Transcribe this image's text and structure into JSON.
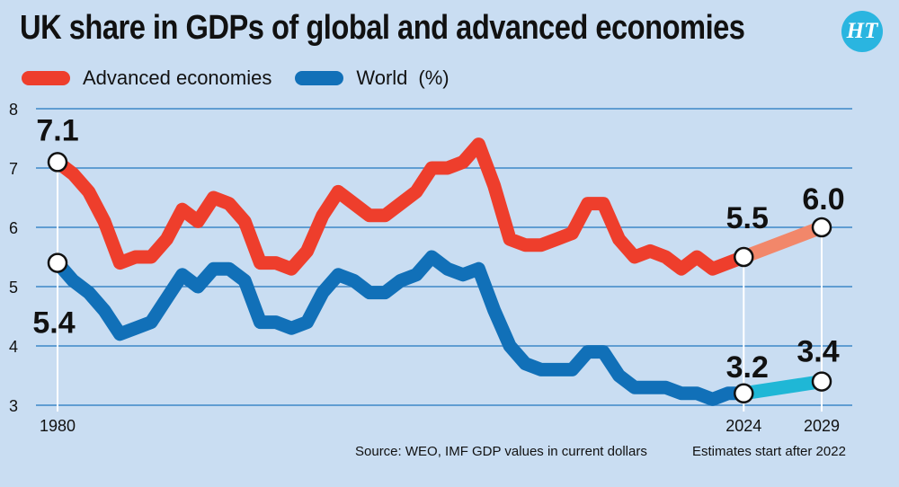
{
  "logo_text": "HT",
  "chart_data": {
    "type": "line",
    "title": "UK share in GDPs of global and advanced economies",
    "unit": "(%)",
    "ylim": [
      3,
      8
    ],
    "yticks": [
      8,
      7,
      6,
      5,
      4,
      3
    ],
    "xlim": [
      1980,
      2029
    ],
    "grid": true,
    "legend_position": "top-left",
    "series": [
      {
        "name": "Advanced economies",
        "color": "#ee3e2c",
        "estimate_color": "#f2876a",
        "x": [
          1980,
          1981,
          1982,
          1983,
          1984,
          1985,
          1986,
          1987,
          1988,
          1989,
          1990,
          1991,
          1992,
          1993,
          1994,
          1995,
          1996,
          1997,
          1998,
          1999,
          2000,
          2001,
          2002,
          2003,
          2004,
          2005,
          2006,
          2007,
          2008,
          2009,
          2010,
          2011,
          2012,
          2013,
          2014,
          2015,
          2016,
          2017,
          2018,
          2019,
          2020,
          2021,
          2022,
          2023,
          2024
        ],
        "values": [
          7.1,
          6.9,
          6.6,
          6.1,
          5.4,
          5.5,
          5.5,
          5.8,
          6.3,
          6.1,
          6.5,
          6.4,
          6.1,
          5.4,
          5.4,
          5.3,
          5.6,
          6.2,
          6.6,
          6.4,
          6.2,
          6.2,
          6.4,
          6.6,
          7.0,
          7.0,
          7.1,
          7.4,
          6.7,
          5.8,
          5.7,
          5.7,
          5.8,
          5.9,
          6.4,
          6.4,
          5.8,
          5.5,
          5.6,
          5.5,
          5.3,
          5.5,
          5.3,
          5.4,
          5.5
        ],
        "estimate_x": [
          2024,
          2029
        ],
        "estimate_values": [
          5.5,
          6.0
        ]
      },
      {
        "name": "World",
        "color": "#1170b8",
        "estimate_color": "#1fb7d6",
        "x": [
          1980,
          1981,
          1982,
          1983,
          1984,
          1985,
          1986,
          1987,
          1988,
          1989,
          1990,
          1991,
          1992,
          1993,
          1994,
          1995,
          1996,
          1997,
          1998,
          1999,
          2000,
          2001,
          2002,
          2003,
          2004,
          2005,
          2006,
          2007,
          2008,
          2009,
          2010,
          2011,
          2012,
          2013,
          2014,
          2015,
          2016,
          2017,
          2018,
          2019,
          2020,
          2021,
          2022,
          2023,
          2024
        ],
        "values": [
          5.4,
          5.1,
          4.9,
          4.6,
          4.2,
          4.3,
          4.4,
          4.8,
          5.2,
          5.0,
          5.3,
          5.3,
          5.1,
          4.4,
          4.4,
          4.3,
          4.4,
          4.9,
          5.2,
          5.1,
          4.9,
          4.9,
          5.1,
          5.2,
          5.5,
          5.3,
          5.2,
          5.3,
          4.6,
          4.0,
          3.7,
          3.6,
          3.6,
          3.6,
          3.9,
          3.9,
          3.5,
          3.3,
          3.3,
          3.3,
          3.2,
          3.2,
          3.1,
          3.2,
          3.2
        ],
        "estimate_x": [
          2024,
          2029
        ],
        "estimate_values": [
          3.2,
          3.4
        ]
      }
    ],
    "callouts": [
      {
        "series": 0,
        "year": 1980,
        "value": 7.1,
        "label": "7.1"
      },
      {
        "series": 0,
        "year": 2024,
        "value": 5.5,
        "label": "5.5"
      },
      {
        "series": 0,
        "year": 2029,
        "value": 6.0,
        "label": "6.0"
      },
      {
        "series": 1,
        "year": 1980,
        "value": 5.4,
        "label": "5.4"
      },
      {
        "series": 1,
        "year": 2024,
        "value": 3.2,
        "label": "3.2"
      },
      {
        "series": 1,
        "year": 2029,
        "value": 3.4,
        "label": "3.4"
      }
    ],
    "x_tick_labels": [
      {
        "year": 1980,
        "label": "1980"
      },
      {
        "year": 2024,
        "label": "2024"
      },
      {
        "year": 2029,
        "label": "2029"
      }
    ],
    "source": "Source: WEO, IMF GDP values in current dollars",
    "estimate_note": "Estimates start after 2022"
  }
}
